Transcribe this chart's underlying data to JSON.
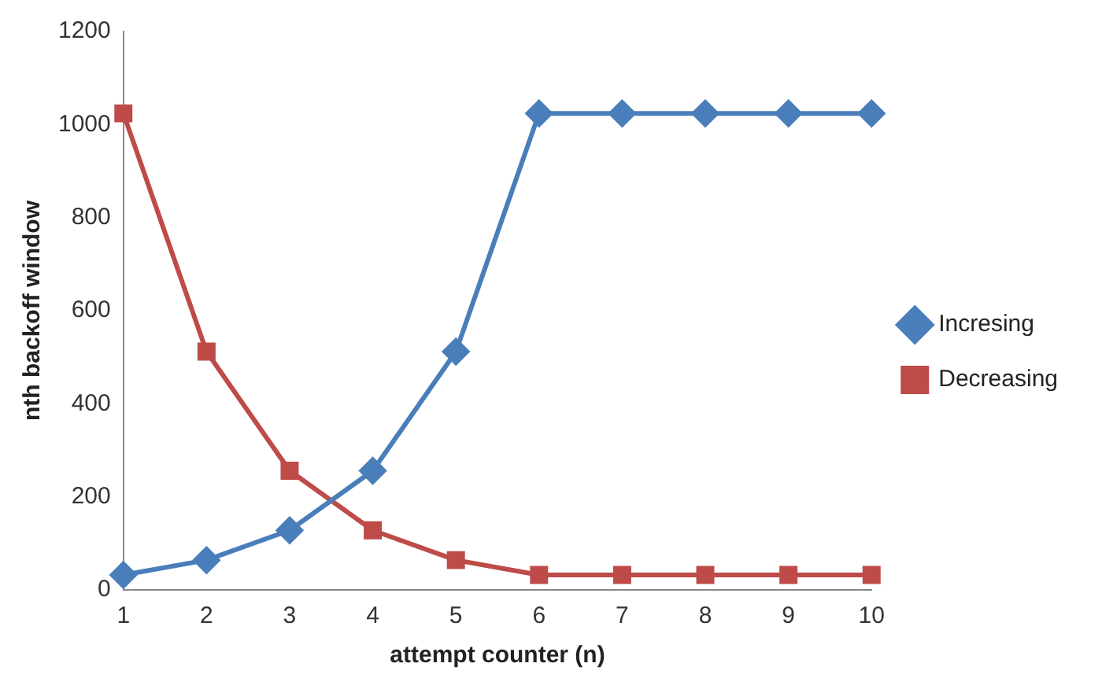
{
  "chart_data": {
    "type": "line",
    "xlabel": "attempt counter (n)",
    "ylabel": "nth backoff window",
    "categories": [
      "1",
      "2",
      "3",
      "4",
      "5",
      "6",
      "7",
      "8",
      "9",
      "10"
    ],
    "series": [
      {
        "name": "Incresing",
        "color": "#4a7ebb",
        "marker": "diamond",
        "values": [
          32,
          64,
          128,
          256,
          512,
          1024,
          1024,
          1024,
          1024,
          1024
        ]
      },
      {
        "name": "Decreasing",
        "color": "#be4b48",
        "marker": "square",
        "values": [
          1024,
          512,
          256,
          128,
          64,
          32,
          32,
          32,
          32,
          32
        ]
      }
    ],
    "ylim": [
      0,
      1200
    ],
    "yticks": [
      0,
      200,
      400,
      600,
      800,
      1000,
      1200
    ],
    "grid": false,
    "legend": "right",
    "line_style": "solid"
  }
}
